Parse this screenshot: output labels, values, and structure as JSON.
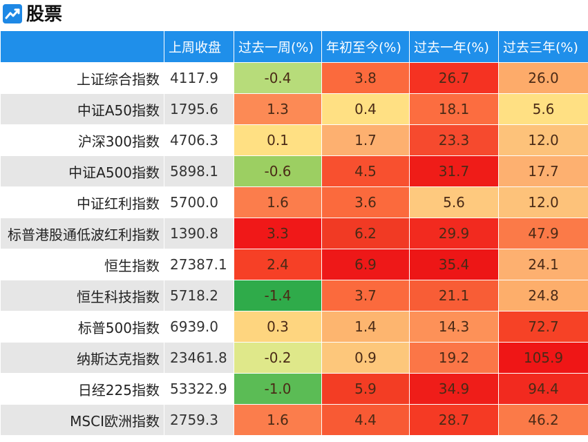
{
  "header": {
    "title": "股票",
    "icon": "trend-chart-icon"
  },
  "table": {
    "columns": [
      "",
      "上周收盘",
      "过去一周(%)",
      "年初至今(%)",
      "过去一年(%)",
      "过去三年(%)"
    ],
    "rows": [
      {
        "name": "上证综合指数",
        "close": "4117.9",
        "week": "-0.4",
        "ytd": "3.8",
        "year1": "26.7",
        "year3": "26.0",
        "colors": [
          "#b7dc7a",
          "#fb6a3d",
          "#f53222",
          "#fdab6a"
        ]
      },
      {
        "name": "中证A50指数",
        "close": "1795.6",
        "week": "1.3",
        "ytd": "0.4",
        "year1": "18.1",
        "year3": "5.6",
        "colors": [
          "#fc8a55",
          "#ffe083",
          "#fc6d40",
          "#ffe083"
        ]
      },
      {
        "name": "沪深300指数",
        "close": "4706.3",
        "week": "0.1",
        "ytd": "1.7",
        "year1": "23.3",
        "year3": "12.0",
        "colors": [
          "#ffe083",
          "#fdb070",
          "#f64a2e",
          "#fdc27a"
        ]
      },
      {
        "name": "中证A500指数",
        "close": "5898.1",
        "week": "-0.6",
        "ytd": "4.5",
        "year1": "31.7",
        "year3": "17.7",
        "colors": [
          "#9ccf62",
          "#f8502f",
          "#ef1c18",
          "#fdb070"
        ]
      },
      {
        "name": "中证红利指数",
        "close": "5700.0",
        "week": "1.6",
        "ytd": "3.6",
        "year1": "5.6",
        "year3": "12.0",
        "colors": [
          "#fb7d4c",
          "#fb6a3d",
          "#fec97e",
          "#fdc27a"
        ]
      },
      {
        "name": "标普港股通低波红利指数",
        "close": "1390.8",
        "week": "3.3",
        "ytd": "6.2",
        "year1": "29.9",
        "year3": "47.9",
        "colors": [
          "#f01818",
          "#f13a24",
          "#f22a1f",
          "#fb7a48"
        ]
      },
      {
        "name": "恒生指数",
        "close": "27387.1",
        "week": "2.4",
        "ytd": "6.9",
        "year1": "35.4",
        "year3": "24.1",
        "colors": [
          "#f64026",
          "#ee1818",
          "#ed1616",
          "#fdb070"
        ]
      },
      {
        "name": "恒生科技指数",
        "close": "5718.2",
        "week": "-1.4",
        "ytd": "3.7",
        "year1": "21.1",
        "year3": "24.8",
        "colors": [
          "#2fab4a",
          "#fb6a3d",
          "#f85d36",
          "#fdae6b"
        ]
      },
      {
        "name": "标普500指数",
        "close": "6939.0",
        "week": "0.3",
        "ytd": "1.4",
        "year1": "14.3",
        "year3": "72.7",
        "colors": [
          "#fed57f",
          "#fdb56f",
          "#fd9158",
          "#f64226"
        ]
      },
      {
        "name": "纳斯达克指数",
        "close": "23461.8",
        "week": "-0.2",
        "ytd": "0.9",
        "year1": "19.2",
        "year3": "105.9",
        "colors": [
          "#dfe88a",
          "#fdc77b",
          "#fb7647",
          "#ef1616"
        ]
      },
      {
        "name": "日经225指数",
        "close": "53322.9",
        "week": "-1.0",
        "ytd": "5.9",
        "year1": "34.9",
        "year3": "94.4",
        "colors": [
          "#5bbc55",
          "#f33d24",
          "#ef1d19",
          "#f22a1f"
        ]
      },
      {
        "name": "MSCI欧洲指数",
        "close": "2759.3",
        "week": "1.6",
        "ytd": "4.4",
        "year1": "28.7",
        "year3": "46.2",
        "colors": [
          "#fb7d4c",
          "#f85a34",
          "#f53a24",
          "#fb7a48"
        ]
      }
    ]
  }
}
